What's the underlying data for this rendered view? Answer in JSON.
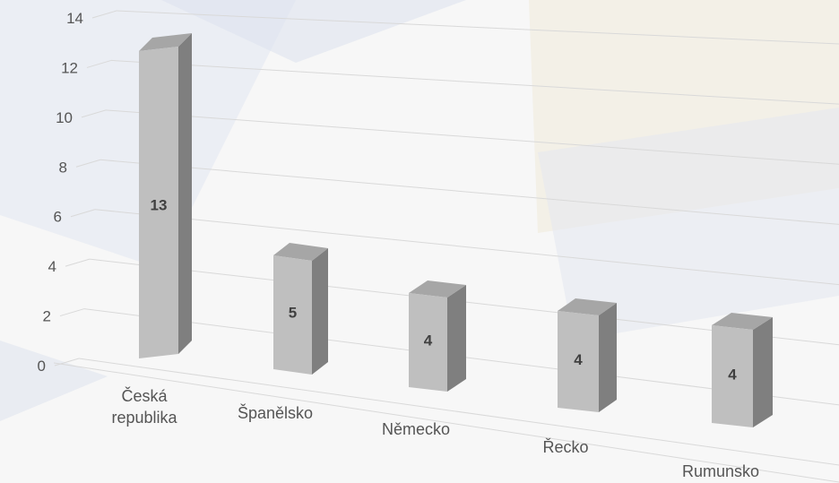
{
  "chart_data": {
    "type": "bar",
    "categories": [
      "Česká\nrepublika",
      "Španělsko",
      "Německo",
      "Řecko",
      "Rumunsko"
    ],
    "values": [
      13,
      5,
      4,
      4,
      4
    ],
    "data_labels": [
      "13",
      "5",
      "4",
      "4",
      "4"
    ],
    "y_ticks": [
      "0",
      "2",
      "4",
      "6",
      "8",
      "10",
      "12",
      "14"
    ],
    "ylim": [
      0,
      14
    ],
    "grid": true,
    "style": "3d-perspective",
    "colors": {
      "bar_front": "#bfbfbf",
      "bar_side": "#7f7f7f",
      "bar_top": "#a6a6a6",
      "grid": "#d9d9d9",
      "label": "#555555",
      "data_label": "#404040"
    }
  }
}
